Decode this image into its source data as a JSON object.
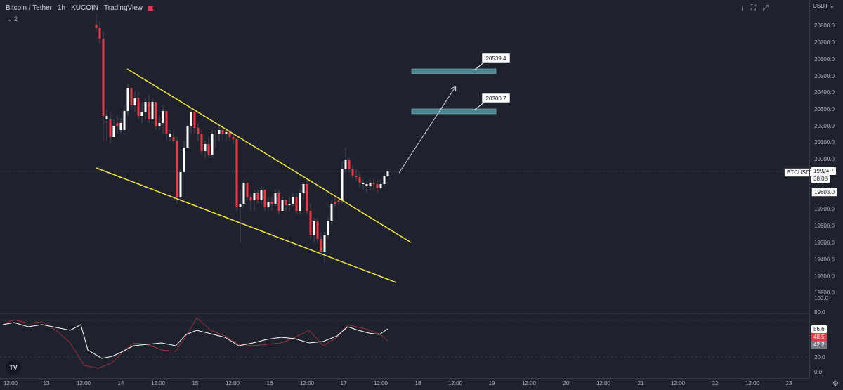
{
  "header": {
    "symbol": "Bitcoin / Tether",
    "interval": "1h",
    "exchange": "KUCOIN",
    "author": "TradingView",
    "indicator_count": "2"
  },
  "toolbar": {
    "down_icon": "↓",
    "fullscreen_icon": "⛶",
    "snapshot_icon": "⤢"
  },
  "price_axis": {
    "currency": "USDT",
    "ticks": [
      "20800.0",
      "20700.0",
      "20600.0",
      "20500.0",
      "20400.0",
      "20300.0",
      "20200.0",
      "20100.0",
      "20000.0",
      "19700.0",
      "19600.0",
      "19500.0",
      "19400.0",
      "19300.0",
      "19200.0",
      "100.0",
      "80.0",
      "20.0",
      "0.0"
    ],
    "symbol_badge": "BTCUSDT",
    "last_price": "19924.7",
    "countdown": "38:08",
    "marker_price": "19803.0",
    "rsi_values": [
      "56.6",
      "48.5",
      "42.2"
    ]
  },
  "time_axis": [
    "12:00",
    "13",
    "12:00",
    "14",
    "12:00",
    "15",
    "12:00",
    "16",
    "12:00",
    "17",
    "12:00",
    "18",
    "12:00",
    "19",
    "12:00",
    "20",
    "12:00",
    "21",
    "12:00",
    "22",
    "12:00",
    "23"
  ],
  "annotations": {
    "target_1": "20539.4",
    "target_2": "20300.7"
  },
  "colors": {
    "bg": "#1e222d",
    "up": "#ffffff",
    "down": "#f23645",
    "trendline": "#f5e642",
    "zone": "#4a8591",
    "rsi": "#ffffff"
  },
  "tv_logo": "TV",
  "settings_icon": "gear-icon"
}
